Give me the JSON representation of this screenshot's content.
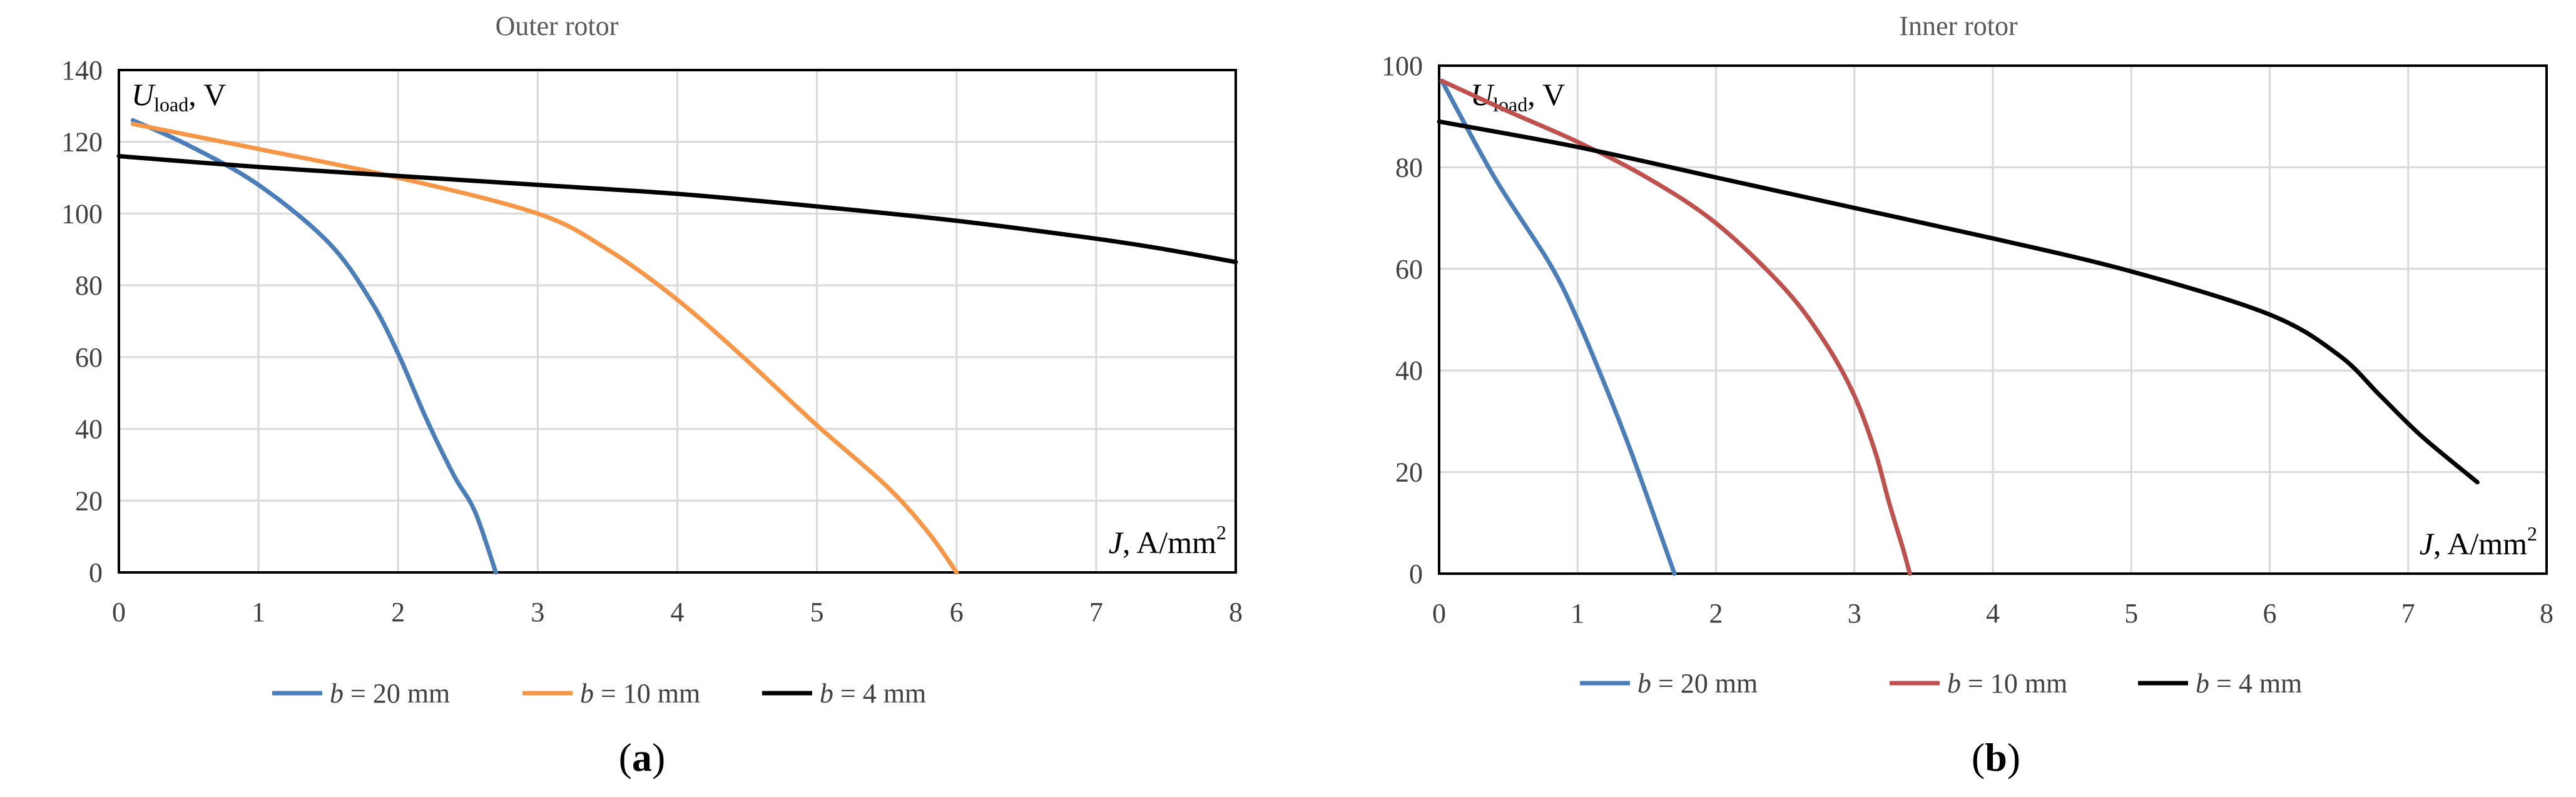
{
  "chart_data": [
    {
      "type": "line",
      "title": "Outer rotor",
      "ylabel": "U",
      "ylabel_sub": "load",
      "ylabel_unit": ", V",
      "xlabel": "J",
      "xlabel_unit": ", A/mm",
      "xlabel_sup": "2",
      "xlim": [
        0,
        8
      ],
      "ylim": [
        0,
        140
      ],
      "xticks": [
        "0",
        "1",
        "2",
        "3",
        "4",
        "5",
        "6",
        "7",
        "8"
      ],
      "yticks": [
        "0",
        "20",
        "40",
        "60",
        "80",
        "100",
        "120",
        "140"
      ],
      "panel_label": "a",
      "series": [
        {
          "name_var": "b",
          "name_rest": " = 20 mm",
          "color": "#4a7ebb",
          "x": [
            0.1,
            0.5,
            1.0,
            1.5,
            1.8,
            2.0,
            2.2,
            2.4,
            2.55,
            2.7
          ],
          "y": [
            126,
            119,
            108,
            92,
            76,
            61,
            43,
            27,
            17,
            0
          ]
        },
        {
          "name_var": "b",
          "name_rest": " = 10 mm",
          "color": "#f79646",
          "x": [
            0.1,
            1.0,
            2.0,
            3.0,
            3.5,
            4.0,
            4.5,
            5.0,
            5.5,
            5.8,
            6.0
          ],
          "y": [
            125,
            118,
            110,
            100,
            90,
            76,
            59,
            41,
            24,
            11,
            0
          ]
        },
        {
          "name_var": "b",
          "name_rest": " = 4 mm",
          "color": "#000000",
          "x": [
            0,
            1,
            2,
            3,
            4,
            5,
            6,
            7,
            7.5,
            8
          ],
          "y": [
            116,
            113,
            110.5,
            108,
            105.5,
            102,
            98,
            93,
            90,
            86.5
          ]
        }
      ]
    },
    {
      "type": "line",
      "title": "Inner rotor",
      "ylabel": "U",
      "ylabel_sub": "load",
      "ylabel_unit": ", V",
      "xlabel": "J",
      "xlabel_unit": ", A/mm",
      "xlabel_sup": "2",
      "xlim": [
        0,
        8
      ],
      "ylim": [
        0,
        100
      ],
      "xticks": [
        "0",
        "1",
        "2",
        "3",
        "4",
        "5",
        "6",
        "7",
        "8"
      ],
      "yticks": [
        "0",
        "20",
        "40",
        "60",
        "80",
        "100"
      ],
      "panel_label": "b",
      "series": [
        {
          "name_var": "b",
          "name_rest": " = 20 mm",
          "color": "#4a7ebb",
          "x": [
            0.02,
            0.4,
            0.8,
            1.0,
            1.2,
            1.4,
            1.7
          ],
          "y": [
            97,
            78,
            61,
            50,
            37,
            23,
            0
          ]
        },
        {
          "name_var": "b",
          "name_rest": " = 10 mm",
          "color": "#c0504d",
          "x": [
            0.02,
            0.5,
            1.0,
            1.5,
            2.0,
            2.5,
            2.8,
            3.0,
            3.15,
            3.25,
            3.35,
            3.4
          ],
          "y": [
            97,
            91,
            85,
            78,
            69,
            56,
            45,
            35,
            24,
            14,
            5,
            0
          ]
        },
        {
          "name_var": "b",
          "name_rest": " = 4 mm",
          "color": "#000000",
          "x": [
            0,
            1,
            2,
            3,
            4,
            5,
            6,
            6.5,
            6.8,
            7.1,
            7.5
          ],
          "y": [
            89,
            84,
            78,
            72,
            66,
            59.5,
            51,
            43,
            35,
            27,
            18
          ]
        }
      ]
    }
  ]
}
